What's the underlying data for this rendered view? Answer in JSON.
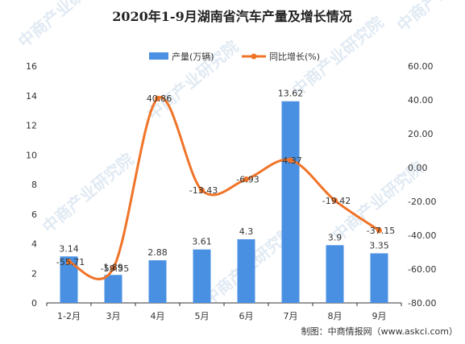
{
  "chart_data": {
    "type": "bar",
    "title": "2020年1-9月湖南省汽车产量及增长情况",
    "categories": [
      "1-2月",
      "3月",
      "4月",
      "5月",
      "6月",
      "7月",
      "8月",
      "9月"
    ],
    "series": [
      {
        "name": "产量(万辆)",
        "type": "bar",
        "axis": "left",
        "color": "#4a90e2",
        "values": [
          3.14,
          1.89,
          2.88,
          3.61,
          4.3,
          13.62,
          3.9,
          3.35
        ],
        "labels": [
          "3.14",
          "1.89",
          "2.88",
          "3.61",
          "4.3",
          "13.62",
          "3.9",
          "3.35"
        ]
      },
      {
        "name": "同比增长(%)",
        "type": "line",
        "axis": "right",
        "color": "#f07428",
        "values": [
          -55.71,
          -59.55,
          40.86,
          -13.43,
          -6.93,
          4.37,
          -19.42,
          -37.15
        ],
        "labels": [
          "-55.71",
          "-59.55",
          "40.86",
          "-13.43",
          "-6.93",
          "4.37",
          "-19.42",
          "-37.15"
        ]
      }
    ],
    "yleft": {
      "ylim": [
        0,
        16
      ],
      "ticks": [
        0,
        2,
        4,
        6,
        8,
        10,
        12,
        14,
        16
      ],
      "tick_labels": [
        "0",
        "2",
        "4",
        "6",
        "8",
        "10",
        "12",
        "14",
        "16"
      ]
    },
    "yright": {
      "ylim": [
        -80,
        60
      ],
      "ticks": [
        -80,
        -60,
        -40,
        -20,
        0,
        20,
        40,
        60
      ],
      "tick_labels": [
        "-80.00",
        "-60.00",
        "-40.00",
        "-20.00",
        "0.00",
        "20.00",
        "40.00",
        "60.00"
      ]
    },
    "legend": "top-center",
    "grid": false
  },
  "source_note": "制图：中商情报网（www.askci.com）",
  "watermark": "中商产业研究院"
}
